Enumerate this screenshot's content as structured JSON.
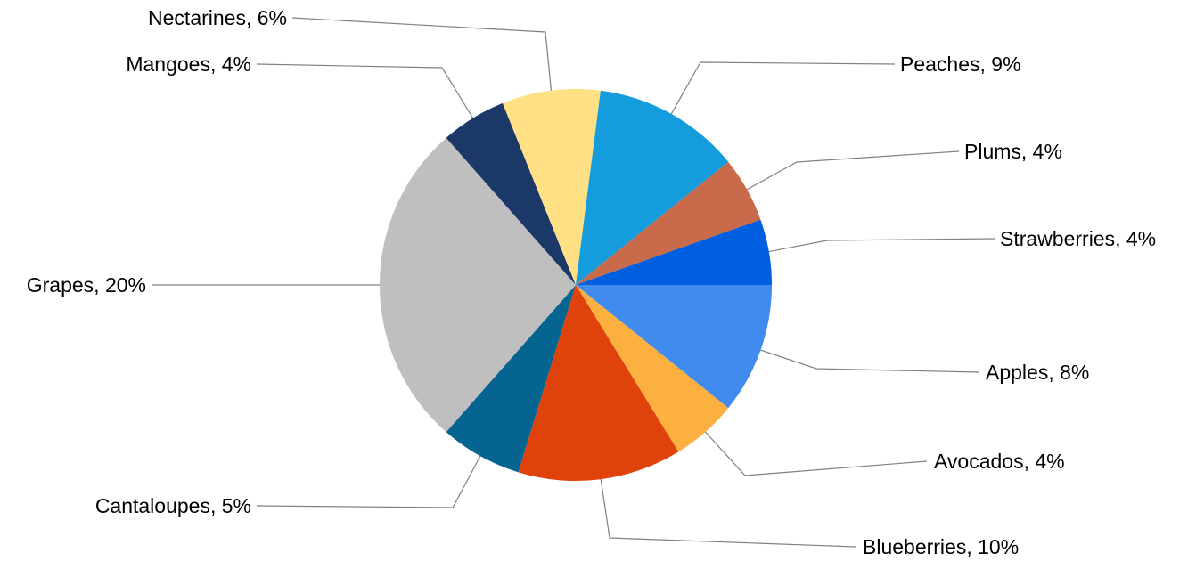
{
  "chart_data": {
    "type": "pie",
    "start_angle_deg": 0,
    "direction": "clockwise",
    "slices": [
      {
        "label": "Apples",
        "value": 8,
        "label_text": "Apples, 8%",
        "color": "#418AEE"
      },
      {
        "label": "Avocados",
        "value": 4,
        "label_text": "Avocados, 4%",
        "color": "#FBB040"
      },
      {
        "label": "Blueberries",
        "value": 10,
        "label_text": "Blueberries, 10%",
        "color": "#E0420B"
      },
      {
        "label": "Cantaloupes",
        "value": 5,
        "label_text": "Cantaloupes, 5%",
        "color": "#066491"
      },
      {
        "label": "Grapes",
        "value": 20,
        "label_text": "Grapes, 20%",
        "color": "#BFBFBF"
      },
      {
        "label": "Mangoes",
        "value": 4,
        "label_text": "Mangoes, 4%",
        "color": "#1B3868"
      },
      {
        "label": "Nectarines",
        "value": 6,
        "label_text": "Nectarines, 6%",
        "color": "#FFE085"
      },
      {
        "label": "Peaches",
        "value": 9,
        "label_text": "Peaches, 9%",
        "color": "#149CDD"
      },
      {
        "label": "Plums",
        "value": 4,
        "label_text": "Plums, 4%",
        "color": "#C96A4A"
      },
      {
        "label": "Strawberries",
        "value": 4,
        "label_text": "Strawberries, 4%",
        "color": "#005FDE"
      }
    ]
  }
}
